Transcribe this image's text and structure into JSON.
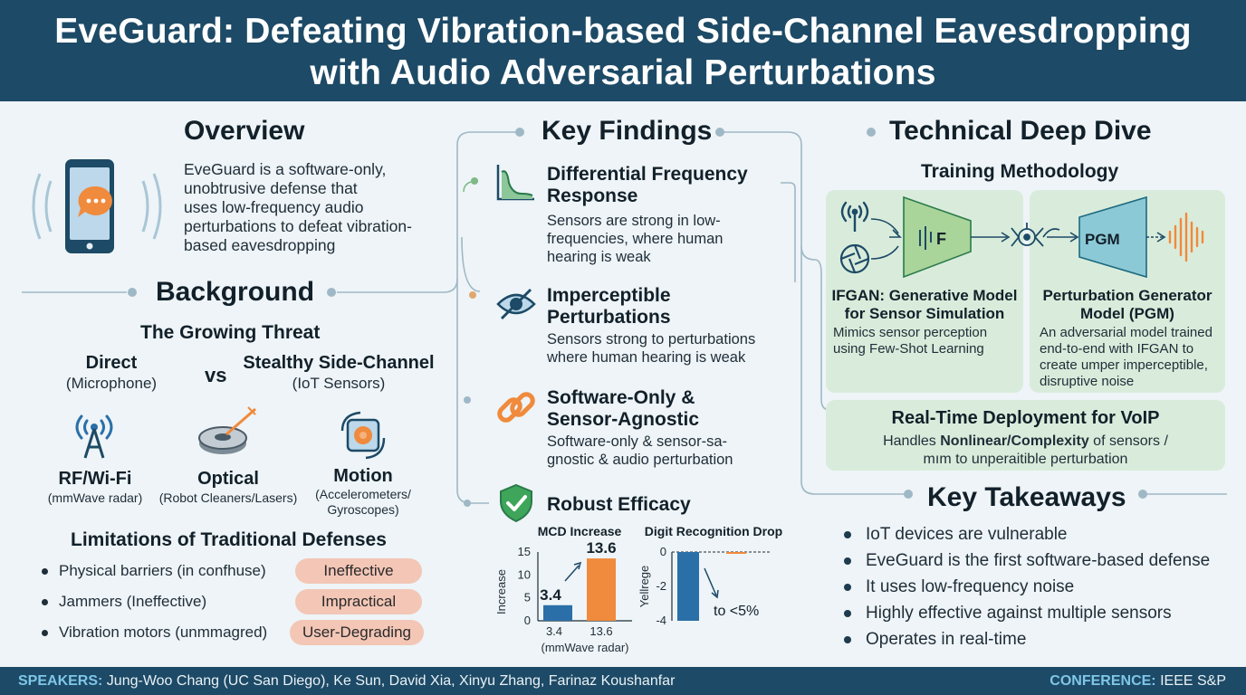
{
  "header": {
    "title_line1": "EveGuard: Defeating Vibration-based Side-Channel Eavesdropping",
    "title_line2": "with Audio Adversarial Perturbations"
  },
  "overview": {
    "heading": "Overview",
    "lines": [
      "EveGuard is a software-only,",
      "unobtrusive defense that",
      "uses low-frequency audio",
      "perturbations to defeat vibration-",
      "based eavesdropping"
    ]
  },
  "background": {
    "heading": "Background",
    "subheading": "The Growing Threat",
    "direct_label": "Direct",
    "direct_sub": "(Microphone)",
    "vs": "vs",
    "stealthy_label": "Stealthy Side-Channel",
    "stealthy_sub": "(IoT Sensors)",
    "threats": [
      {
        "label": "RF/Wi-Fi",
        "sub": "(mmWave radar)",
        "icon": "antenna-icon"
      },
      {
        "label": "Optical",
        "sub": "(Robot Cleaners/Lasers)",
        "icon": "robot-cleaner-icon"
      },
      {
        "label": "Motion",
        "sub1": "(Accelerometers/",
        "sub2": "Gyroscopes)",
        "icon": "motion-sensor-icon"
      }
    ],
    "limitations_heading": "Limitations of Traditional Defenses",
    "limitations": [
      {
        "text": "Physical barriers (in confhuse)",
        "tag": "Ineffective"
      },
      {
        "text": "Jammers (Ineffective)",
        "tag": "Impractical"
      },
      {
        "text": "Vibration motors (unmmagred)",
        "tag": "User-Degrading"
      }
    ]
  },
  "findings": {
    "heading": "Key Findings",
    "items": [
      {
        "title1": "Differential Frequency",
        "title2": "Response",
        "body1": "Sensors are strong in low-",
        "body2": "frequencies, where human",
        "body3": "hearing is weak",
        "icon": "frequency-chart-icon"
      },
      {
        "title1": "Imperceptible",
        "title2": "Perturbations",
        "body1": "Sensors strong to perturbations",
        "body2": "where human hearing is weak",
        "icon": "hidden-eye-icon"
      },
      {
        "title1": "Software-Only &",
        "title2": "Sensor-Agnostic",
        "body1": "Software-only & sensor-sa-",
        "body2": "gnostic & audio perturbation",
        "icon": "chain-link-icon"
      },
      {
        "title1": "Robust Efficacy",
        "icon": "shield-check-icon"
      }
    ]
  },
  "charts": {
    "mcd_title": "MCD Increase",
    "digit_title": "Digit Recognition Drop",
    "mcd_ylabel": "Increase",
    "digit_ylabel": "Yellrege",
    "mcd_xlabel": "(mmWave radar)",
    "digit_annotation": "to <5%"
  },
  "chart_data": [
    {
      "type": "bar",
      "title": "MCD Increase",
      "ylabel": "Increase",
      "xlabel": "(mmWave radar)",
      "categories": [
        "3.4",
        "13.6"
      ],
      "values": [
        3.4,
        13.6
      ],
      "data_labels": [
        "3.4",
        "13.6"
      ],
      "yticks": [
        0,
        5,
        10,
        15
      ],
      "ylim": [
        0,
        15
      ],
      "colors": [
        "#2a6fa8",
        "#f08a3c"
      ]
    },
    {
      "type": "bar",
      "title": "Digit Recognition Drop",
      "ylabel": "Yellrege",
      "yticks": [
        0,
        -2,
        -4
      ],
      "ylim": [
        -4,
        0
      ],
      "values": [
        -4,
        -0.05
      ],
      "annotation": "to <5%",
      "colors": [
        "#2a6fa8",
        "#f08a3c"
      ]
    }
  ],
  "technical": {
    "heading": "Technical Deep Dive",
    "subheading": "Training Methodology",
    "f_label": "F",
    "pgm_label": "PGM",
    "ifgan_title1": "IFGAN: Generative Model",
    "ifgan_title2": "for Sensor Simulation",
    "ifgan_body1": "Mimics sensor perception",
    "ifgan_body2": "using Few-Shot Learning",
    "pgm_title1": "Perturbation Generator",
    "pgm_title2": "Model (PGM)",
    "pgm_body1": "An adversarial model trained",
    "pgm_body2": "end-to-end with IFGAN to",
    "pgm_body3": "create umper imperceptible,",
    "pgm_body4": "disruptive noise",
    "realtime_title": "Real-Time Deployment for VoIP",
    "realtime_prefix": "Handles ",
    "realtime_bold": "Nonlinear/Complexity",
    "realtime_suffix": " of sensors /",
    "realtime_line2": "mım to unperaitible perturbation"
  },
  "takeaways": {
    "heading": "Key Takeaways",
    "items": [
      "IoT devices are vulnerable",
      "EveGuard is the first software-based defense",
      "It uses low-frequency noise",
      "Highly effective against multiple sensors",
      "Operates in real-time"
    ]
  },
  "footer": {
    "speakers_label": "SPEAKERS:",
    "speakers": " Jung-Woo Chang (UC San Diego), Ke Sun, David Xia, Xinyu Zhang, Farinaz Koushanfar",
    "conference_label": "CONFERENCE:",
    "conference": " IEEE S&P"
  },
  "colors": {
    "navy": "#1d4a66",
    "orange": "#f08a3c",
    "blue": "#2a6fa8",
    "green_card": "#d9ecdb",
    "pill": "#f3c6b6"
  }
}
